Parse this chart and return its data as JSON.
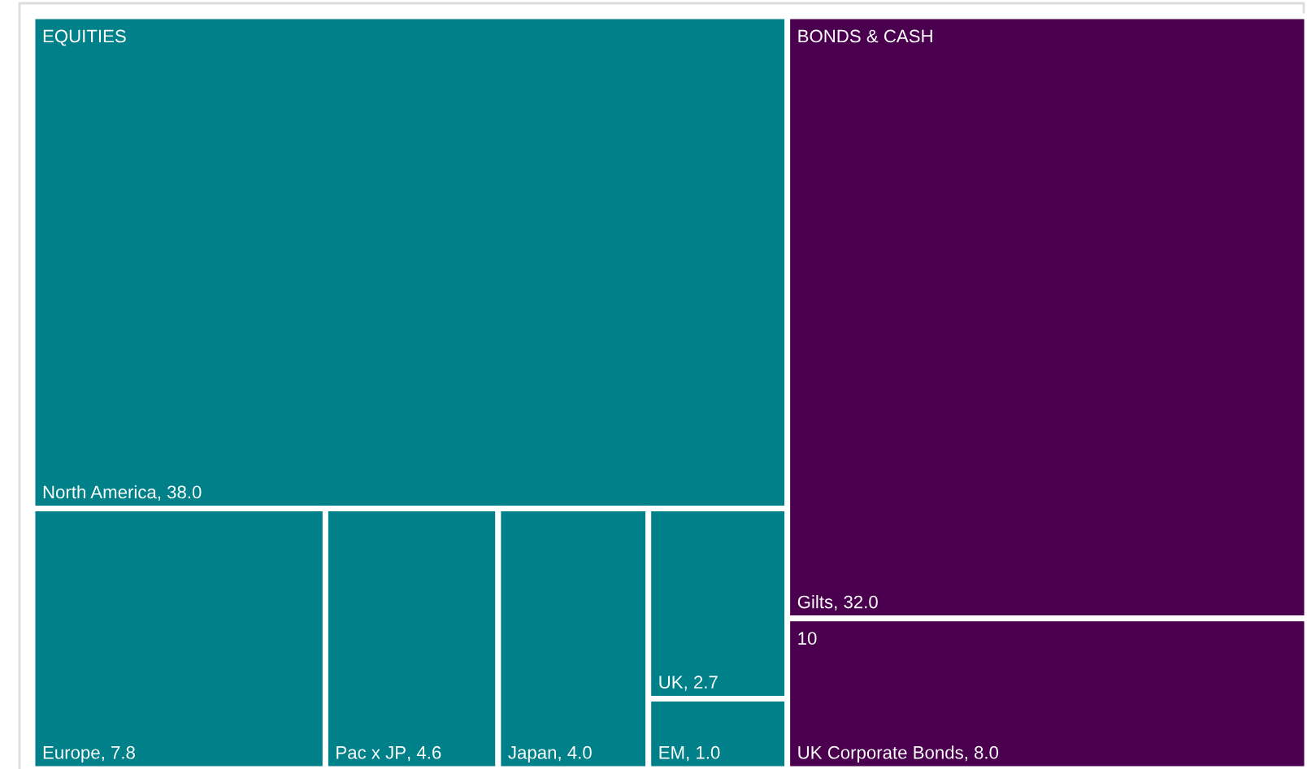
{
  "chart_data": {
    "type": "other",
    "categories": [
      "North America",
      "Europe",
      "Pac x JP",
      "Japan",
      "UK",
      "EM",
      "Gilts",
      "UK Corporate Bonds"
    ],
    "values": [
      38.0,
      7.8,
      4.6,
      4.0,
      2.7,
      1.0,
      32.0,
      8.0
    ],
    "value_labels": [
      ", 38.0",
      ", 7.8",
      ", 4.6",
      ", 4.0",
      ", 2.7",
      ", 1.0",
      ", 32.0",
      ", 8.0"
    ],
    "colors": [
      "#008189",
      "#008189",
      "#008189",
      "#008189",
      "#008189",
      "#008189",
      "#4a004f",
      "#4a004f"
    ],
    "annotations": [
      "EQUITIES",
      "BONDS & CASH",
      "10"
    ]
  }
}
